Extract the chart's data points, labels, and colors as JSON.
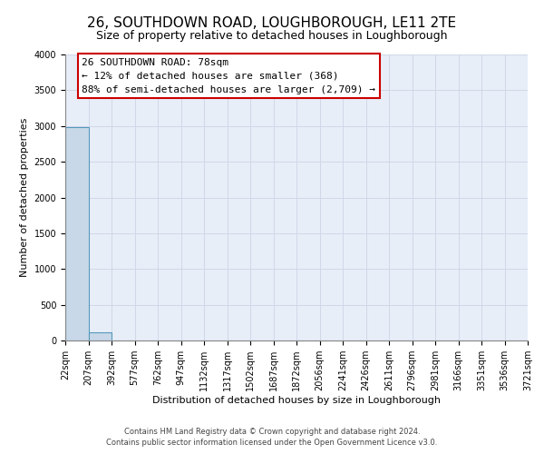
{
  "title": "26, SOUTHDOWN ROAD, LOUGHBOROUGH, LE11 2TE",
  "subtitle": "Size of property relative to detached houses in Loughborough",
  "xlabel": "Distribution of detached houses by size in Loughborough",
  "ylabel": "Number of detached properties",
  "footer_line1": "Contains HM Land Registry data © Crown copyright and database right 2024.",
  "footer_line2": "Contains public sector information licensed under the Open Government Licence v3.0.",
  "bar_values": [
    2985,
    110,
    0,
    0,
    0,
    0,
    0,
    0,
    0,
    0,
    0,
    0,
    0,
    0,
    0,
    0,
    0,
    0,
    0,
    0
  ],
  "bar_color": "#c8d8e8",
  "bar_edge_color": "#5599bb",
  "x_labels": [
    "22sqm",
    "207sqm",
    "392sqm",
    "577sqm",
    "762sqm",
    "947sqm",
    "1132sqm",
    "1317sqm",
    "1502sqm",
    "1687sqm",
    "1872sqm",
    "2056sqm",
    "2241sqm",
    "2426sqm",
    "2611sqm",
    "2796sqm",
    "2981sqm",
    "3166sqm",
    "3351sqm",
    "3536sqm",
    "3721sqm"
  ],
  "ylim": [
    0,
    4000
  ],
  "yticks": [
    0,
    500,
    1000,
    1500,
    2000,
    2500,
    3000,
    3500,
    4000
  ],
  "annotation_line1": "26 SOUTHDOWN ROAD: 78sqm",
  "annotation_line2": "← 12% of detached houses are smaller (368)",
  "annotation_line3": "88% of semi-detached houses are larger (2,709) →",
  "annotation_box_color": "#ffffff",
  "annotation_border_color": "#cc0000",
  "grid_color": "#d0d8e8",
  "bg_color": "#e8eef8",
  "title_fontsize": 11,
  "subtitle_fontsize": 9,
  "annotation_fontsize": 8,
  "axis_label_fontsize": 8,
  "tick_fontsize": 7,
  "footer_fontsize": 6
}
